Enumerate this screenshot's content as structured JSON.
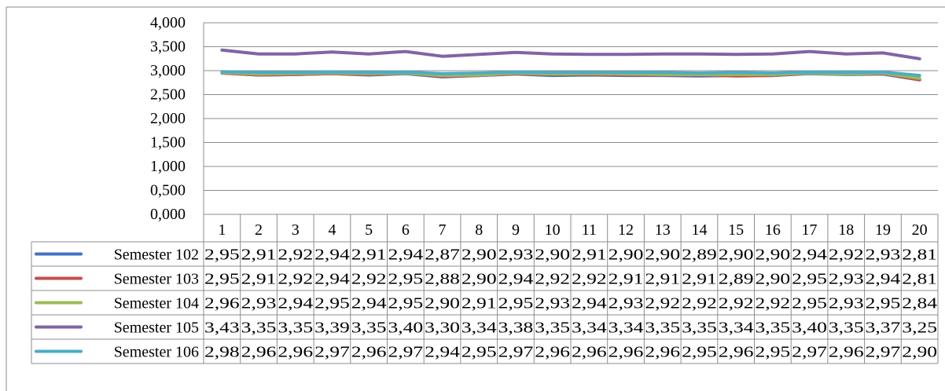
{
  "header_partial": "",
  "chart_data": {
    "type": "line",
    "title": "",
    "xlabel": "",
    "ylabel": "",
    "ylim": [
      0,
      4
    ],
    "y_ticks": [
      "0,000",
      "0,500",
      "1,000",
      "1,500",
      "2,000",
      "2,500",
      "3,000",
      "3,500",
      "4,000"
    ],
    "y_tick_values": [
      0,
      0.5,
      1,
      1.5,
      2,
      2.5,
      3,
      3.5,
      4
    ],
    "grid": true,
    "legend": "data-table",
    "categories": [
      "1",
      "2",
      "3",
      "4",
      "5",
      "6",
      "7",
      "8",
      "9",
      "10",
      "11",
      "12",
      "13",
      "14",
      "15",
      "16",
      "17",
      "18",
      "19",
      "20"
    ],
    "series": [
      {
        "name": "Semester 102",
        "color": "#4472c4",
        "values": [
          2.95,
          2.91,
          2.92,
          2.94,
          2.91,
          2.94,
          2.87,
          2.9,
          2.93,
          2.9,
          2.91,
          2.9,
          2.9,
          2.89,
          2.9,
          2.9,
          2.94,
          2.92,
          2.93,
          2.81
        ],
        "labels": [
          "2,95",
          "2,91",
          "2,92",
          "2,94",
          "2,91",
          "2,94",
          "2,87",
          "2,90",
          "2,93",
          "2,90",
          "2,91",
          "2,90",
          "2,90",
          "2,89",
          "2,90",
          "2,90",
          "2,94",
          "2,92",
          "2,93",
          "2,81"
        ]
      },
      {
        "name": "Semester 103",
        "color": "#c0504d",
        "values": [
          2.95,
          2.91,
          2.92,
          2.94,
          2.92,
          2.95,
          2.88,
          2.9,
          2.94,
          2.92,
          2.92,
          2.91,
          2.91,
          2.91,
          2.89,
          2.9,
          2.95,
          2.93,
          2.94,
          2.81
        ],
        "labels": [
          "2,95",
          "2,91",
          "2,92",
          "2,94",
          "2,92",
          "2,95",
          "2,88",
          "2,90",
          "2,94",
          "2,92",
          "2,92",
          "2,91",
          "2,91",
          "2,91",
          "2,89",
          "2,90",
          "2,95",
          "2,93",
          "2,94",
          "2,81"
        ]
      },
      {
        "name": "Semester 104",
        "color": "#9bbb59",
        "values": [
          2.96,
          2.93,
          2.94,
          2.95,
          2.94,
          2.95,
          2.9,
          2.91,
          2.95,
          2.93,
          2.94,
          2.93,
          2.92,
          2.92,
          2.92,
          2.92,
          2.95,
          2.93,
          2.95,
          2.84
        ],
        "labels": [
          "2,96",
          "2,93",
          "2,94",
          "2,95",
          "2,94",
          "2,95",
          "2,90",
          "2,91",
          "2,95",
          "2,93",
          "2,94",
          "2,93",
          "2,92",
          "2,92",
          "2,92",
          "2,92",
          "2,95",
          "2,93",
          "2,95",
          "2,84"
        ]
      },
      {
        "name": "Semester 105",
        "color": "#8064a2",
        "values": [
          3.43,
          3.35,
          3.35,
          3.39,
          3.35,
          3.4,
          3.3,
          3.34,
          3.38,
          3.35,
          3.34,
          3.34,
          3.35,
          3.35,
          3.34,
          3.35,
          3.4,
          3.35,
          3.37,
          3.25
        ],
        "labels": [
          "3,43",
          "3,35",
          "3,35",
          "3,39",
          "3,35",
          "3,40",
          "3,30",
          "3,34",
          "3,38",
          "3,35",
          "3,34",
          "3,34",
          "3,35",
          "3,35",
          "3,34",
          "3,35",
          "3,40",
          "3,35",
          "3,37",
          "3,25"
        ]
      },
      {
        "name": "Semester 106",
        "color": "#4bacc6",
        "values": [
          2.98,
          2.96,
          2.96,
          2.97,
          2.96,
          2.97,
          2.94,
          2.95,
          2.97,
          2.96,
          2.96,
          2.96,
          2.96,
          2.95,
          2.96,
          2.95,
          2.97,
          2.96,
          2.97,
          2.9
        ],
        "labels": [
          "2,98",
          "2,96",
          "2,96",
          "2,97",
          "2,96",
          "2,97",
          "2,94",
          "2,95",
          "2,97",
          "2,96",
          "2,96",
          "2,96",
          "2,96",
          "2,95",
          "2,96",
          "2,95",
          "2,97",
          "2,96",
          "2,97",
          "2,90"
        ]
      }
    ]
  }
}
